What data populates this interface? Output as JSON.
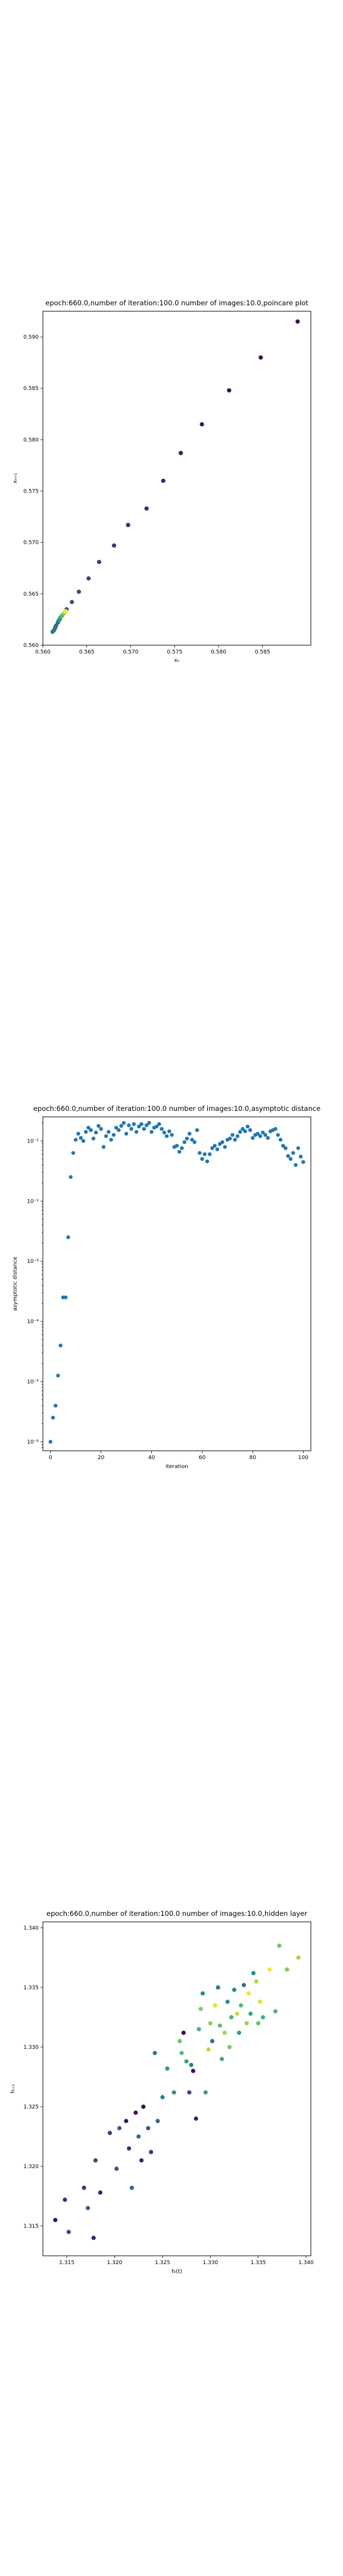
{
  "chart_data": [
    {
      "type": "scatter",
      "title": "epoch:660.0,number of iteration:100.0  number of images:10.0,poincare plot",
      "xlabel": "xₙ",
      "ylabel": "xₙ₊₁",
      "xlim": [
        0.56,
        0.5905
      ],
      "ylim": [
        0.56,
        0.5925
      ],
      "xticks": [
        0.56,
        0.565,
        0.57,
        0.575,
        0.58,
        0.585
      ],
      "xtick_labels": [
        "0.560",
        "0.565",
        "0.570",
        "0.575",
        "0.580",
        "0.585"
      ],
      "yticks": [
        0.56,
        0.565,
        0.57,
        0.575,
        0.58,
        0.585,
        0.59
      ],
      "ytick_labels": [
        "0.560",
        "0.565",
        "0.570",
        "0.575",
        "0.580",
        "0.585",
        "0.590"
      ],
      "colormap": [
        "#440154",
        "#3b528b",
        "#21918c",
        "#5ec962",
        "#fde725"
      ],
      "points": [
        {
          "x": 0.589,
          "y": 0.5915,
          "c": 0.0
        },
        {
          "x": 0.5848,
          "y": 0.588,
          "c": 0.02
        },
        {
          "x": 0.5812,
          "y": 0.5848,
          "c": 0.04
        },
        {
          "x": 0.5781,
          "y": 0.5815,
          "c": 0.06
        },
        {
          "x": 0.5757,
          "y": 0.5787,
          "c": 0.08
        },
        {
          "x": 0.5737,
          "y": 0.576,
          "c": 0.1
        },
        {
          "x": 0.5718,
          "y": 0.5733,
          "c": 0.12
        },
        {
          "x": 0.5697,
          "y": 0.5717,
          "c": 0.14
        },
        {
          "x": 0.5681,
          "y": 0.5697,
          "c": 0.16
        },
        {
          "x": 0.5664,
          "y": 0.5681,
          "c": 0.18
        },
        {
          "x": 0.5652,
          "y": 0.5665,
          "c": 0.2
        },
        {
          "x": 0.5641,
          "y": 0.5652,
          "c": 0.22
        },
        {
          "x": 0.5633,
          "y": 0.5642,
          "c": 0.24
        },
        {
          "x": 0.5627,
          "y": 0.5635,
          "c": 0.26
        },
        {
          "x": 0.5622,
          "y": 0.5629,
          "c": 0.28
        },
        {
          "x": 0.5619,
          "y": 0.5625,
          "c": 0.3
        },
        {
          "x": 0.5617,
          "y": 0.5622,
          "c": 0.32
        },
        {
          "x": 0.5615,
          "y": 0.5619,
          "c": 0.34
        },
        {
          "x": 0.5614,
          "y": 0.5617,
          "c": 0.36
        },
        {
          "x": 0.5613,
          "y": 0.5615,
          "c": 0.38
        },
        {
          "x": 0.5612,
          "y": 0.5614,
          "c": 0.4
        },
        {
          "x": 0.5611,
          "y": 0.5613,
          "c": 0.42
        },
        {
          "x": 0.5618,
          "y": 0.5624,
          "c": 0.5
        },
        {
          "x": 0.562,
          "y": 0.5627,
          "c": 0.6
        },
        {
          "x": 0.5622,
          "y": 0.5629,
          "c": 0.7
        },
        {
          "x": 0.5624,
          "y": 0.5631,
          "c": 0.8
        },
        {
          "x": 0.5625,
          "y": 0.5632,
          "c": 0.9
        },
        {
          "x": 0.5626,
          "y": 0.5633,
          "c": 1.0
        }
      ]
    },
    {
      "type": "scatter",
      "title": "epoch:660.0,number of iteration:100.0  number of images:10.0,asymptotic distance",
      "xlabel": "iteration",
      "ylabel": "asymptotic distance",
      "xlim": [
        -3,
        103
      ],
      "ylim_log10": [
        -6.15,
        -0.6
      ],
      "log_y": true,
      "xticks": [
        0,
        20,
        40,
        60,
        80,
        100
      ],
      "xtick_labels": [
        "0",
        "20",
        "40",
        "60",
        "80",
        "100"
      ],
      "yticks_log10": [
        -6,
        -5,
        -4,
        -3,
        -2,
        -1
      ],
      "ytick_labels": [
        "10⁻⁶",
        "10⁻⁵",
        "10⁻⁴",
        "10⁻³",
        "10⁻²",
        "10⁻¹"
      ],
      "color": "#1f77b4",
      "y_log10": [
        -6.0,
        -5.6,
        -5.4,
        -4.9,
        -4.4,
        -3.6,
        -3.6,
        -2.6,
        -1.6,
        -1.2,
        -0.98,
        -0.88,
        -0.95,
        -1.0,
        -0.85,
        -0.78,
        -0.82,
        -0.96,
        -0.86,
        -0.75,
        -0.8,
        -1.1,
        -0.92,
        -0.85,
        -0.98,
        -0.9,
        -0.78,
        -0.82,
        -0.75,
        -0.7,
        -0.88,
        -0.74,
        -0.8,
        -0.72,
        -0.85,
        -0.76,
        -0.72,
        -0.8,
        -0.74,
        -0.7,
        -0.85,
        -0.78,
        -0.76,
        -0.72,
        -0.8,
        -0.86,
        -0.92,
        -0.84,
        -0.9,
        -1.1,
        -1.08,
        -1.18,
        -1.12,
        -1.02,
        -0.96,
        -0.88,
        -0.98,
        -1.02,
        -0.82,
        -1.2,
        -1.3,
        -1.22,
        -1.34,
        -1.22,
        -1.12,
        -1.08,
        -1.14,
        -1.05,
        -1.02,
        -1.1,
        -0.98,
        -0.96,
        -0.9,
        -0.98,
        -0.92,
        -0.85,
        -0.8,
        -0.84,
        -0.76,
        -0.82,
        -0.95,
        -0.9,
        -0.88,
        -0.92,
        -0.86,
        -0.9,
        -0.95,
        -0.84,
        -0.82,
        -0.8,
        -0.9,
        -0.98,
        -1.08,
        -1.12,
        -1.25,
        -1.3,
        -1.2,
        -1.4,
        -1.12,
        -1.26,
        -1.35
      ]
    },
    {
      "type": "scatter",
      "title": "epoch:660.0,number of iteration:100.0  number of images:10.0,hidden layer",
      "xlabel": "hᵢ(t)",
      "ylabel": "hᵢ₊₁",
      "xlim": [
        1.3125,
        1.3405
      ],
      "ylim": [
        1.3125,
        1.3405
      ],
      "xticks": [
        1.315,
        1.32,
        1.325,
        1.33,
        1.335,
        1.34
      ],
      "xtick_labels": [
        "1.315",
        "1.320",
        "1.325",
        "1.330",
        "1.335",
        "1.340"
      ],
      "yticks": [
        1.315,
        1.32,
        1.325,
        1.33,
        1.335,
        1.34
      ],
      "ytick_labels": [
        "1.315",
        "1.320",
        "1.325",
        "1.330",
        "1.335",
        "1.340"
      ],
      "colormap": [
        "#440154",
        "#3b528b",
        "#21918c",
        "#5ec962",
        "#fde725"
      ],
      "points": [
        {
          "x": 1.3138,
          "y": 1.3155,
          "c": 0.05
        },
        {
          "x": 1.3148,
          "y": 1.3172,
          "c": 0.12
        },
        {
          "x": 1.3152,
          "y": 1.3145,
          "c": 0.22
        },
        {
          "x": 1.3168,
          "y": 1.3182,
          "c": 0.15
        },
        {
          "x": 1.3172,
          "y": 1.3165,
          "c": 0.3
        },
        {
          "x": 1.3178,
          "y": 1.314,
          "c": 0.08
        },
        {
          "x": 1.318,
          "y": 1.3205,
          "c": 0.2
        },
        {
          "x": 1.3185,
          "y": 1.3178,
          "c": 0.1
        },
        {
          "x": 1.3195,
          "y": 1.3228,
          "c": 0.18
        },
        {
          "x": 1.3202,
          "y": 1.3198,
          "c": 0.25
        },
        {
          "x": 1.3205,
          "y": 1.3232,
          "c": 0.28
        },
        {
          "x": 1.3212,
          "y": 1.3238,
          "c": 0.06
        },
        {
          "x": 1.3215,
          "y": 1.3215,
          "c": 0.14
        },
        {
          "x": 1.3218,
          "y": 1.3182,
          "c": 0.32
        },
        {
          "x": 1.3222,
          "y": 1.3245,
          "c": 0.04
        },
        {
          "x": 1.3225,
          "y": 1.3225,
          "c": 0.35
        },
        {
          "x": 1.3228,
          "y": 1.3205,
          "c": 0.1
        },
        {
          "x": 1.323,
          "y": 1.325,
          "c": 0.02
        },
        {
          "x": 1.3235,
          "y": 1.3232,
          "c": 0.26
        },
        {
          "x": 1.3238,
          "y": 1.3212,
          "c": 0.16
        },
        {
          "x": 1.3242,
          "y": 1.3295,
          "c": 0.4
        },
        {
          "x": 1.3245,
          "y": 1.3238,
          "c": 0.33
        },
        {
          "x": 1.325,
          "y": 1.3258,
          "c": 0.45
        },
        {
          "x": 1.3255,
          "y": 1.3282,
          "c": 0.55
        },
        {
          "x": 1.3262,
          "y": 1.3262,
          "c": 0.5
        },
        {
          "x": 1.3268,
          "y": 1.3305,
          "c": 0.75
        },
        {
          "x": 1.327,
          "y": 1.3295,
          "c": 0.7
        },
        {
          "x": 1.3272,
          "y": 1.3312,
          "c": 0.0
        },
        {
          "x": 1.3275,
          "y": 1.3288,
          "c": 0.6
        },
        {
          "x": 1.3278,
          "y": 1.3262,
          "c": 0.2
        },
        {
          "x": 1.328,
          "y": 1.3285,
          "c": 0.45
        },
        {
          "x": 1.3282,
          "y": 1.328,
          "c": 0.04
        },
        {
          "x": 1.3285,
          "y": 1.324,
          "c": 0.1
        },
        {
          "x": 1.3288,
          "y": 1.3315,
          "c": 0.65
        },
        {
          "x": 1.329,
          "y": 1.3332,
          "c": 0.8
        },
        {
          "x": 1.3292,
          "y": 1.3345,
          "c": 0.48
        },
        {
          "x": 1.3295,
          "y": 1.3262,
          "c": 0.58
        },
        {
          "x": 1.3298,
          "y": 1.3298,
          "c": 0.9
        },
        {
          "x": 1.33,
          "y": 1.332,
          "c": 0.82
        },
        {
          "x": 1.3302,
          "y": 1.3305,
          "c": 0.38
        },
        {
          "x": 1.3305,
          "y": 1.3335,
          "c": 0.95
        },
        {
          "x": 1.3308,
          "y": 1.335,
          "c": 0.42
        },
        {
          "x": 1.331,
          "y": 1.3318,
          "c": 0.72
        },
        {
          "x": 1.3312,
          "y": 1.329,
          "c": 0.62
        },
        {
          "x": 1.3315,
          "y": 1.3312,
          "c": 0.86
        },
        {
          "x": 1.3318,
          "y": 1.3338,
          "c": 0.52
        },
        {
          "x": 1.332,
          "y": 1.33,
          "c": 0.78
        },
        {
          "x": 1.3322,
          "y": 1.3325,
          "c": 0.66
        },
        {
          "x": 1.3325,
          "y": 1.3348,
          "c": 0.46
        },
        {
          "x": 1.3328,
          "y": 1.3328,
          "c": 0.92
        },
        {
          "x": 1.333,
          "y": 1.3312,
          "c": 0.56
        },
        {
          "x": 1.3332,
          "y": 1.3335,
          "c": 0.7
        },
        {
          "x": 1.3335,
          "y": 1.3352,
          "c": 0.36
        },
        {
          "x": 1.3338,
          "y": 1.332,
          "c": 0.84
        },
        {
          "x": 1.334,
          "y": 1.3345,
          "c": 0.98
        },
        {
          "x": 1.3342,
          "y": 1.3328,
          "c": 0.6
        },
        {
          "x": 1.3345,
          "y": 1.3362,
          "c": 0.5
        },
        {
          "x": 1.3348,
          "y": 1.3355,
          "c": 0.88
        },
        {
          "x": 1.335,
          "y": 1.332,
          "c": 0.74
        },
        {
          "x": 1.3352,
          "y": 1.3338,
          "c": 0.96
        },
        {
          "x": 1.3355,
          "y": 1.3325,
          "c": 0.64
        },
        {
          "x": 1.3362,
          "y": 1.3365,
          "c": 0.99
        },
        {
          "x": 1.3368,
          "y": 1.333,
          "c": 0.68
        },
        {
          "x": 1.3372,
          "y": 1.3385,
          "c": 0.76
        },
        {
          "x": 1.338,
          "y": 1.3365,
          "c": 0.8
        },
        {
          "x": 1.3392,
          "y": 1.3375,
          "c": 0.86
        }
      ]
    }
  ]
}
